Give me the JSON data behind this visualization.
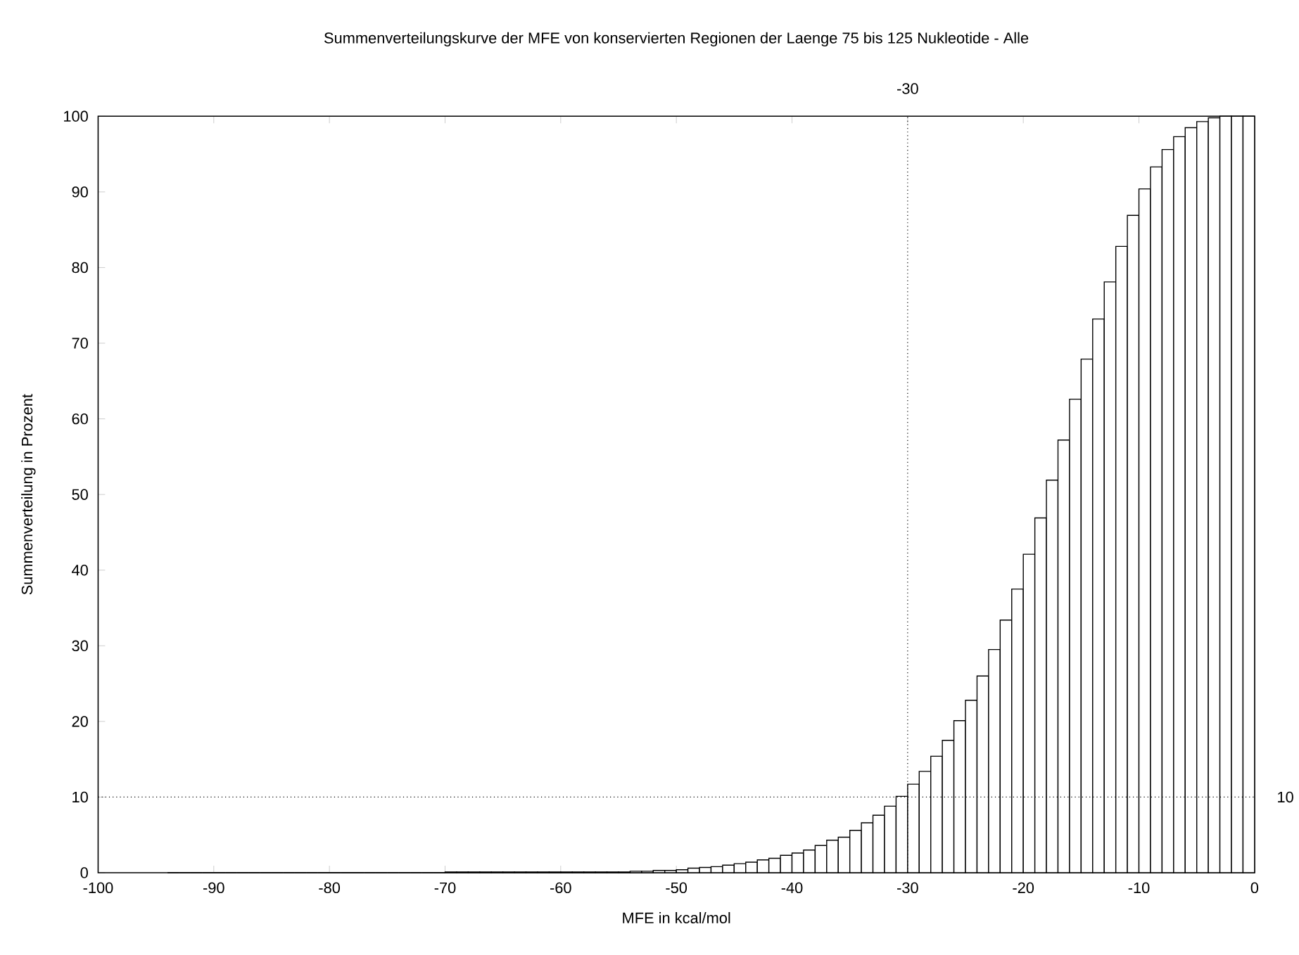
{
  "chart_data": {
    "type": "histogram",
    "title": "Summenverteilungskurve der MFE von konservierten Regionen der Laenge 75 bis 125 Nukleotide - Alle",
    "xlabel": "MFE in kcal/mol",
    "ylabel": "Summenverteilung in Prozent",
    "bins": [
      -94,
      -93,
      -92,
      -91,
      -90,
      -89,
      -88,
      -87,
      -86,
      -85,
      -84,
      -83,
      -82,
      -81,
      -80,
      -79,
      -78,
      -77,
      -76,
      -75,
      -74,
      -73,
      -72,
      -71,
      -70,
      -69,
      -68,
      -67,
      -66,
      -65,
      -64,
      -63,
      -62,
      -61,
      -60,
      -59,
      -58,
      -57,
      -56,
      -55,
      -54,
      -53,
      -52,
      -51,
      -50,
      -49,
      -48,
      -47,
      -46,
      -45,
      -44,
      -43,
      -42,
      -41,
      -40,
      -39,
      -38,
      -37,
      -36,
      -35,
      -34,
      -33,
      -32,
      -31,
      -30,
      -29,
      -28,
      -27,
      -26,
      -25,
      -24,
      -23,
      -22,
      -21,
      -20,
      -19,
      -18,
      -17,
      -16,
      -15,
      -14,
      -13,
      -12,
      -11,
      -10,
      -9,
      -8,
      -7,
      -6,
      -5,
      -4,
      -3,
      -2,
      -1,
      0
    ],
    "values": [
      0,
      0,
      0,
      0,
      0,
      0,
      0,
      0,
      0,
      0,
      0,
      0,
      0,
      0,
      0,
      0,
      0,
      0,
      0,
      0,
      0,
      0,
      0,
      0,
      0.1,
      0.1,
      0.1,
      0.1,
      0.1,
      0.1,
      0.1,
      0.1,
      0.1,
      0.1,
      0.1,
      0.1,
      0.1,
      0.1,
      0.1,
      0.1,
      0.2,
      0.2,
      0.3,
      0.3,
      0.4,
      0.6,
      0.7,
      0.8,
      1.0,
      1.2,
      1.4,
      1.7,
      1.9,
      2.3,
      2.6,
      3.0,
      3.6,
      4.3,
      4.7,
      5.6,
      6.6,
      7.6,
      8.8,
      10.1,
      11.7,
      13.4,
      15.4,
      17.5,
      20.1,
      22.8,
      26.0,
      29.5,
      33.4,
      37.5,
      42.1,
      46.9,
      51.9,
      57.2,
      62.6,
      67.9,
      73.2,
      78.1,
      82.8,
      86.9,
      90.4,
      93.3,
      95.6,
      97.3,
      98.5,
      99.3,
      99.8,
      100,
      100,
      100
    ],
    "color": "#000000",
    "xlim": [
      -100,
      0
    ],
    "ylim": [
      0,
      100
    ],
    "xticks": [
      -100,
      -90,
      -80,
      -70,
      -60,
      -50,
      -40,
      -30,
      -20,
      -10,
      0
    ],
    "yticks": [
      0,
      10,
      20,
      30,
      40,
      50,
      60,
      70,
      80,
      90,
      100
    ],
    "ref_lines": [
      {
        "axis": "x",
        "value": -30,
        "label": "-30",
        "line_style": "dotted"
      },
      {
        "axis": "y",
        "value": 10,
        "label": "10",
        "line_style": "dotted"
      }
    ],
    "grid": false
  }
}
